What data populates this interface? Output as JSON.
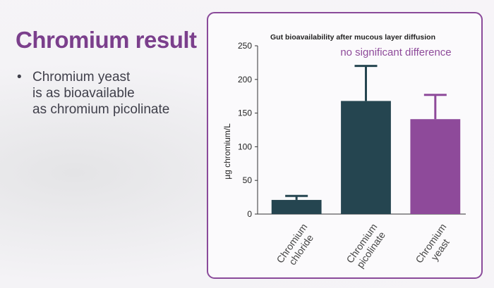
{
  "slide": {
    "title": "Chromium result",
    "bullet_lines": [
      "Chromium yeast",
      "is as bioavailable",
      "as chromium picolinate"
    ]
  },
  "chart_data": {
    "type": "bar",
    "title": "Gut bioavailability after mucous layer diffusion",
    "annotation": "no significant difference",
    "y_label": "µg chromium/L",
    "categories": [
      "Chromium chloride",
      "Chromium picolinate",
      "Chromium yeast"
    ],
    "values": [
      21,
      168,
      141
    ],
    "errors": [
      6,
      52,
      36
    ],
    "colors": [
      "#254550",
      "#254550",
      "#8e4a9a"
    ],
    "ylim": [
      0,
      250
    ],
    "yticks": [
      0,
      50,
      100,
      150,
      200,
      250
    ]
  }
}
